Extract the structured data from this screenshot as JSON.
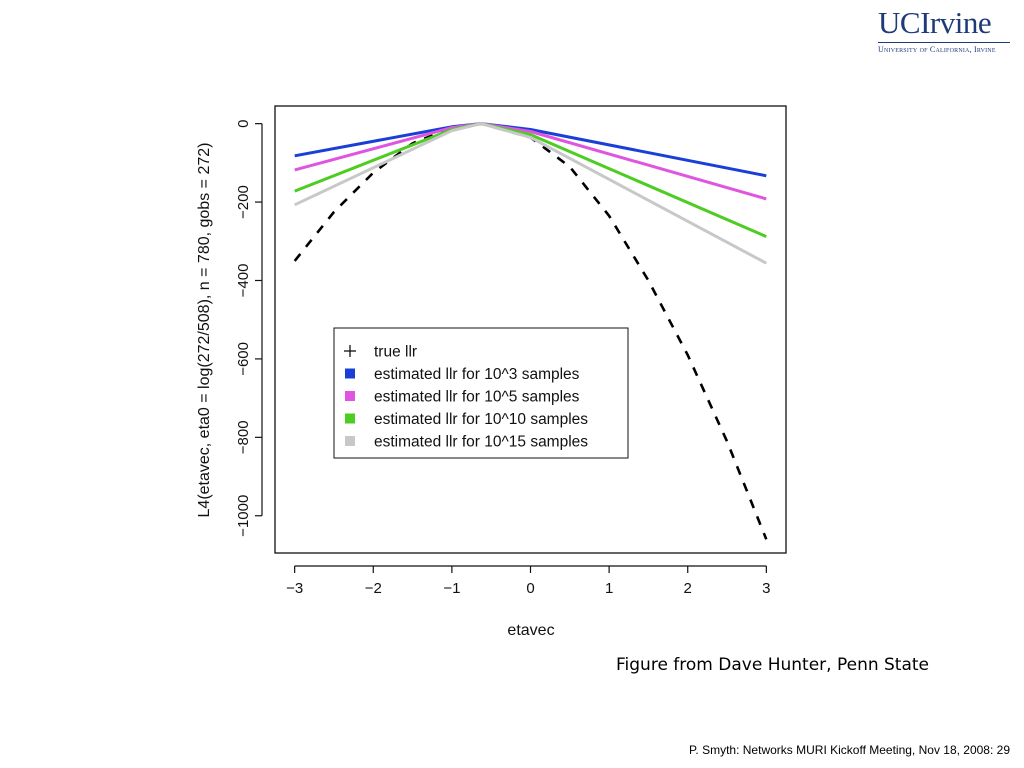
{
  "logo": {
    "mark": "UCIrvine",
    "sub": "University of California, Irvine"
  },
  "caption": "Figure from Dave Hunter, Penn State",
  "footer": "P.  Smyth: Networks MURI Kickoff Meeting, Nov 18, 2008: 29",
  "chart_data": {
    "type": "line",
    "xlabel": "etavec",
    "ylabel": "L4(etavec, eta0 = log(272/508), n = 780, gobs = 272)",
    "xlim": [
      -3.25,
      3.25
    ],
    "ylim": [
      -1095,
      45
    ],
    "x_ticks": [
      -3,
      -2,
      -1,
      0,
      1,
      2,
      3
    ],
    "x_tick_labels": [
      "−3",
      "−2",
      "−1",
      "0",
      "1",
      "2",
      "3"
    ],
    "y_ticks": [
      0,
      -200,
      -400,
      -600,
      -800,
      -1000
    ],
    "y_tick_labels": [
      "0",
      "−200",
      "−400",
      "−600",
      "−800",
      "−1000"
    ],
    "peak_x": -0.63,
    "grid": false,
    "legend_position": "center",
    "series": [
      {
        "name": "true llr",
        "style": "dashed",
        "color": "#000000",
        "symbol": "+",
        "x": [
          -3,
          -2.5,
          -2,
          -1.5,
          -1,
          -0.63,
          0,
          0.5,
          1,
          1.5,
          2,
          2.5,
          3
        ],
        "y": [
          -350,
          -225,
          -125,
          -50,
          -10,
          0,
          -35,
          -110,
          -235,
          -400,
          -590,
          -810,
          -1060
        ]
      },
      {
        "name": "estimated llr for 10^3 samples",
        "style": "solid",
        "color": "#1a3fd6",
        "x": [
          -3,
          -1,
          -0.63,
          0,
          3
        ],
        "y": [
          -82,
          -8,
          0,
          -15,
          -133
        ]
      },
      {
        "name": "estimated llr for 10^5 samples",
        "style": "solid",
        "color": "#e055e0",
        "x": [
          -3,
          -1,
          -0.63,
          0,
          3
        ],
        "y": [
          -118,
          -10,
          0,
          -20,
          -192
        ]
      },
      {
        "name": "estimated llr for 10^10 samples",
        "style": "solid",
        "color": "#4dcc22",
        "x": [
          -3,
          -1,
          -0.63,
          0,
          3
        ],
        "y": [
          -172,
          -15,
          0,
          -28,
          -288
        ]
      },
      {
        "name": "estimated llr for 10^15 samples",
        "style": "solid",
        "color": "#c8c8c8",
        "x": [
          -3,
          -1,
          -0.63,
          0,
          3
        ],
        "y": [
          -207,
          -18,
          0,
          -35,
          -356
        ]
      }
    ]
  }
}
